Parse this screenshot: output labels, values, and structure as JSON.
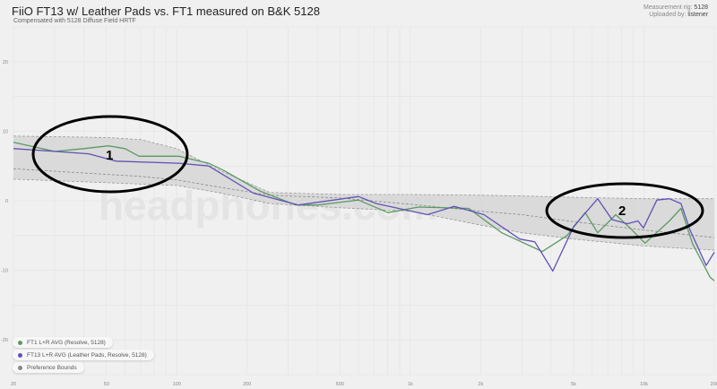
{
  "header": {
    "title": "FiiO FT13 w/ Leather Pads vs. FT1 measured on B&K 5128",
    "subtitle": "Compensated with 5128 Diffuse Field HRTF",
    "rig_label": "Measurement rig:",
    "rig_value": "5128",
    "uploader_label": "Uploaded by:",
    "uploader_value": "listener"
  },
  "watermark": "headphones.com",
  "annotations": [
    {
      "label": "1"
    },
    {
      "label": "2"
    }
  ],
  "legend": [
    {
      "label": "FT1 L+R AVG (Resolve, 5128)",
      "color": "#5a9a62"
    },
    {
      "label": "FT13 L+R AVG (Leather Pads, Resolve, 5128)",
      "color": "#6152b5"
    },
    {
      "label": "Preference Bounds",
      "color": "#888888"
    }
  ],
  "chart_data": {
    "type": "line",
    "title": "FiiO FT13 w/ Leather Pads vs. FT1 measured on B&K 5128",
    "xscale": "log",
    "xlim": [
      20,
      20000
    ],
    "ylim": [
      -25,
      25
    ],
    "xticks": [
      {
        "v": 20,
        "label": "20"
      },
      {
        "v": 50,
        "label": "50"
      },
      {
        "v": 100,
        "label": "100"
      },
      {
        "v": 200,
        "label": "200"
      },
      {
        "v": 500,
        "label": "500"
      },
      {
        "v": 1000,
        "label": "1k"
      },
      {
        "v": 2000,
        "label": "2k"
      },
      {
        "v": 5000,
        "label": "5k"
      },
      {
        "v": 10000,
        "label": "10k"
      },
      {
        "v": 20000,
        "label": "20k"
      }
    ],
    "yticks": [
      {
        "v": 20,
        "label": "20"
      },
      {
        "v": 10,
        "label": "10"
      },
      {
        "v": 0,
        "label": "0"
      },
      {
        "v": -10,
        "label": "-10"
      },
      {
        "v": -20,
        "label": "-20"
      }
    ],
    "series": [
      {
        "name": "FT1 L+R AVG (Resolve, 5128)",
        "color": "#5a9a62",
        "points": [
          [
            20,
            8.4
          ],
          [
            30,
            7.1
          ],
          [
            40,
            7.5
          ],
          [
            51,
            7.9
          ],
          [
            60,
            7.5
          ],
          [
            69,
            6.4
          ],
          [
            102,
            6.4
          ],
          [
            137,
            5.4
          ],
          [
            160,
            4.3
          ],
          [
            227,
            1.4
          ],
          [
            323,
            -0.6
          ],
          [
            403,
            -0.6
          ],
          [
            600,
            0.1
          ],
          [
            802,
            -1.7
          ],
          [
            1084,
            -0.9
          ],
          [
            1778,
            -1.1
          ],
          [
            2460,
            -4.6
          ],
          [
            3670,
            -7.3
          ],
          [
            4690,
            -5.0
          ],
          [
            5600,
            -1.7
          ],
          [
            6340,
            -4.6
          ],
          [
            7570,
            -2.0
          ],
          [
            8710,
            -3.9
          ],
          [
            10100,
            -6.1
          ],
          [
            12850,
            -2.9
          ],
          [
            14400,
            -1.1
          ],
          [
            16150,
            -6.2
          ],
          [
            19200,
            -11
          ],
          [
            20000,
            -11.5
          ]
        ]
      },
      {
        "name": "FT13 L+R AVG (Leather Pads, Resolve, 5128)",
        "color": "#6152b5",
        "points": [
          [
            20,
            7.5
          ],
          [
            30,
            7.1
          ],
          [
            42,
            6.75
          ],
          [
            55,
            5.7
          ],
          [
            102,
            5.4
          ],
          [
            137,
            5.0
          ],
          [
            213,
            1.1
          ],
          [
            332,
            -0.6
          ],
          [
            600,
            0.6
          ],
          [
            715,
            -0.4
          ],
          [
            1183,
            -2.0
          ],
          [
            1540,
            -0.8
          ],
          [
            2065,
            -2.0
          ],
          [
            2940,
            -5.5
          ],
          [
            3410,
            -5.9
          ],
          [
            4070,
            -10.1
          ],
          [
            5000,
            -3.7
          ],
          [
            6340,
            0.3
          ],
          [
            7300,
            -2.7
          ],
          [
            8490,
            -3.3
          ],
          [
            9420,
            -2.9
          ],
          [
            9940,
            -3.9
          ],
          [
            11350,
            0.1
          ],
          [
            12850,
            0.3
          ],
          [
            14400,
            -0.4
          ],
          [
            15740,
            -4.2
          ],
          [
            18460,
            -9.3
          ],
          [
            20000,
            -7.4
          ]
        ]
      }
    ],
    "preference_bounds": {
      "name": "Preference Bounds",
      "freq": [
        20,
        50,
        70,
        100,
        150,
        250,
        500,
        1000,
        2000,
        3000,
        5000,
        10000,
        20000
      ],
      "upper": [
        9.3,
        9.1,
        8.8,
        7.5,
        4.5,
        1.2,
        0.9,
        0.9,
        0.8,
        0.7,
        0.5,
        0.3,
        0.3
      ],
      "target": [
        4.6,
        3.8,
        3.5,
        3.0,
        2.0,
        0.8,
        0.4,
        -0.5,
        -1.5,
        -2.0,
        -3.0,
        -4.2,
        -5.3
      ],
      "lower": [
        3.1,
        2.6,
        2.4,
        2.2,
        1.2,
        -0.4,
        -1.0,
        -1.5,
        -3.5,
        -4.6,
        -5.5,
        -6.5,
        -7.1
      ]
    }
  }
}
